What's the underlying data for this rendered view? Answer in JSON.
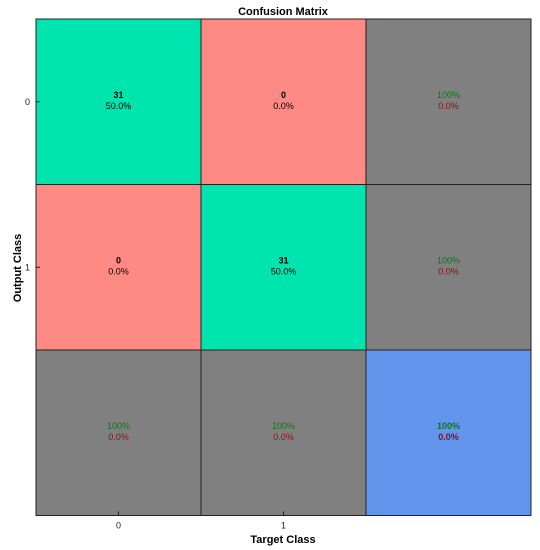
{
  "chart_data": {
    "type": "heatmap",
    "title": "Confusion Matrix",
    "xlabel": "Target Class",
    "ylabel": "Output Class",
    "target_classes": [
      "0",
      "1"
    ],
    "output_classes": [
      "0",
      "1"
    ],
    "colors": {
      "correct": "#00e5b0",
      "incorrect": "#ff8a84",
      "summary": "#808080",
      "overall": "#6495ed",
      "correct_text": "#0a7a14",
      "incorrect_text": "#8b1212",
      "cell_text": "#000000"
    },
    "cells": [
      [
        {
          "count": "31",
          "percent": "50.0%"
        },
        {
          "count": "0",
          "percent": "0.0%"
        }
      ],
      [
        {
          "count": "0",
          "percent": "0.0%"
        },
        {
          "count": "31",
          "percent": "50.0%"
        }
      ]
    ],
    "row_summary": [
      {
        "correct": "100%",
        "incorrect": "0.0%"
      },
      {
        "correct": "100%",
        "incorrect": "0.0%"
      }
    ],
    "column_summary": [
      {
        "correct": "100%",
        "incorrect": "0.0%"
      },
      {
        "correct": "100%",
        "incorrect": "0.0%"
      }
    ],
    "overall": {
      "correct": "100%",
      "incorrect": "0.0%"
    }
  }
}
